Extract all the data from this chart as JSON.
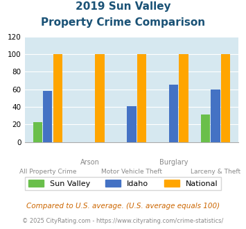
{
  "title_line1": "2019 Sun Valley",
  "title_line2": "Property Crime Comparison",
  "categories": [
    "All Property Crime",
    "Arson",
    "Motor Vehicle Theft",
    "Burglary",
    "Larceny & Theft"
  ],
  "bottom_labels": [
    "All Property Crime",
    "",
    "Motor Vehicle Theft",
    "",
    "Larceny & Theft"
  ],
  "top_labels": [
    "",
    "Arson",
    "",
    "Burglary",
    ""
  ],
  "sun_valley": [
    23,
    0,
    0,
    0,
    31
  ],
  "idaho": [
    58,
    0,
    41,
    65,
    60
  ],
  "national": [
    100,
    100,
    100,
    100,
    100
  ],
  "sun_valley_color": "#6abf4b",
  "idaho_color": "#4472c4",
  "national_color": "#ffa500",
  "ylim": [
    0,
    120
  ],
  "yticks": [
    0,
    20,
    40,
    60,
    80,
    100,
    120
  ],
  "bg_color": "#d6e8f0",
  "title_color": "#1a5276",
  "xlabel_color": "#888888",
  "legend_labels": [
    "Sun Valley",
    "Idaho",
    "National"
  ],
  "footnote1": "Compared to U.S. average. (U.S. average equals 100)",
  "footnote2": "© 2025 CityRating.com - https://www.cityrating.com/crime-statistics/",
  "footnote1_color": "#cc6600",
  "footnote2_color": "#888888",
  "bar_width": 0.22,
  "bar_gap": 0.02
}
